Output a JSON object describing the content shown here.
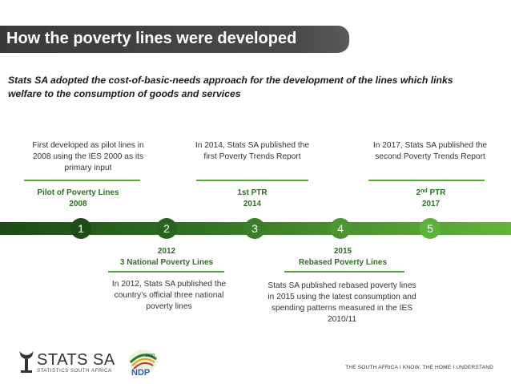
{
  "title": "How the poverty lines were developed",
  "subtitle": "Stats SA adopted the cost-of-basic-needs approach for the development of the lines which links welfare to the consumption of goods and services",
  "milestones": [
    {
      "number": "1",
      "label_line1": "Pilot of Poverty Lines",
      "label_line2": "2008",
      "description": "First developed as pilot lines in 2008 using the IES 2000 as its primary input",
      "color": "#1f4d17"
    },
    {
      "number": "2",
      "label_line1": "2012",
      "label_line2": "3 National Poverty Lines",
      "description": "In 2012, Stats SA published the country’s official three national poverty lines",
      "color": "#2a6520"
    },
    {
      "number": "3",
      "label_line1": "1st PTR",
      "label_line2": "2014",
      "description": "In 2014, Stats SA published the first Poverty Trends Report",
      "color": "#3b7f2a"
    },
    {
      "number": "4",
      "label_line1": "2015",
      "label_line2": "Rebased Poverty Lines",
      "description": "Stats SA published rebased poverty lines in 2015 using the latest consumption and spending patterns measured in the IES 2010/11",
      "color": "#4c9632"
    },
    {
      "number": "5",
      "label_prefix": "2",
      "label_sup": "nd",
      "label_suffix": " PTR",
      "label_line2": "2017",
      "description": "In 2017, Stats SA published the second Poverty Trends Report",
      "color": "#5eb13b"
    }
  ],
  "footer": {
    "org_name": "STATS SA",
    "org_subtitle": "STATISTICS SOUTH AFRICA",
    "ndp_logo_text": "NDP",
    "ndp_year": "2030",
    "tagline": "THE SOUTH AFRICA I KNOW, THE HOME I UNDERSTAND"
  },
  "colors": {
    "title_bar": "#3f3f3f",
    "accent_green": "#5aa63a",
    "label_green": "#2f6f23"
  }
}
